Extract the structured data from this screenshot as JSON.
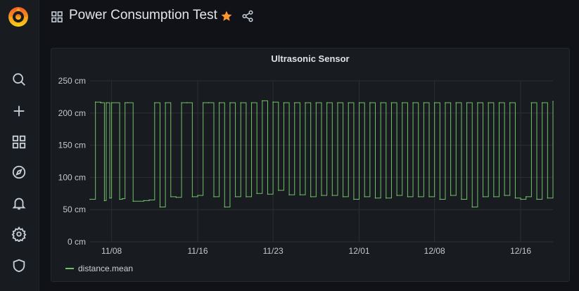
{
  "sidebar": {
    "items": [
      {
        "name": "search-icon"
      },
      {
        "name": "plus-icon"
      },
      {
        "name": "dashboards-icon"
      },
      {
        "name": "explore-compass-icon"
      },
      {
        "name": "alerting-bell-icon"
      },
      {
        "name": "configuration-gear-icon"
      },
      {
        "name": "admin-shield-icon"
      }
    ]
  },
  "header": {
    "title": "Power Consumption Test",
    "star_color": "#ff9830"
  },
  "panel": {
    "title": "Ultrasonic Sensor",
    "legend": "distance.mean"
  },
  "chart_data": {
    "type": "line",
    "title": "Ultrasonic Sensor",
    "y_unit": "cm",
    "ylim": [
      0,
      250
    ],
    "y_ticks": [
      "0 cm",
      "50 cm",
      "100 cm",
      "150 cm",
      "200 cm",
      "250 cm"
    ],
    "x_ticks": [
      "11/08",
      "11/16",
      "11/23",
      "12/01",
      "12/08",
      "12/16"
    ],
    "grid": true,
    "legend_placement": "bottom-left",
    "series": [
      {
        "name": "distance.mean",
        "color": "#73bf69",
        "x": [
          "11/06",
          "11/06 12:00",
          "11/07",
          "11/07 08:00",
          "11/07 12:00",
          "11/07 20:00",
          "11/08",
          "11/08 18:00",
          "11/09",
          "11/09 06:00",
          "11/09 12:00",
          "11/10",
          "11/11",
          "11/11 12:00",
          "11/12",
          "11/12 12:00",
          "11/13",
          "11/13 12:00",
          "11/14",
          "11/14 12:00",
          "11/15",
          "11/15 12:00",
          "11/16",
          "11/16 12:00",
          "11/17",
          "11/17 12:00",
          "11/18",
          "11/18 12:00",
          "11/19",
          "11/19 12:00",
          "11/20",
          "11/20 12:00",
          "11/21",
          "11/21 12:00",
          "11/22",
          "11/22 12:00",
          "11/23",
          "11/23 12:00",
          "11/24",
          "11/24 12:00",
          "11/25",
          "11/25 12:00",
          "11/26",
          "11/26 12:00",
          "11/27",
          "11/27 12:00",
          "11/28",
          "11/28 12:00",
          "11/29",
          "11/29 12:00",
          "11/30",
          "11/30 12:00",
          "12/01",
          "12/01 12:00",
          "12/02",
          "12/02 12:00",
          "12/03",
          "12/03 12:00",
          "12/04",
          "12/04 12:00",
          "12/05",
          "12/05 12:00",
          "12/06",
          "12/06 12:00",
          "12/07",
          "12/07 12:00",
          "12/08",
          "12/08 12:00",
          "12/09",
          "12/09 12:00",
          "12/10",
          "12/10 12:00",
          "12/11",
          "12/11 12:00",
          "12/12",
          "12/12 12:00",
          "12/13",
          "12/13 12:00",
          "12/14",
          "12/14 12:00",
          "12/15",
          "12/15 12:00",
          "12/16",
          "12/16 12:00",
          "12/17",
          "12/17 12:00",
          "12/18",
          "12/18 12:00",
          "12/19"
        ],
        "values": [
          66,
          217,
          216,
          64,
          216,
          68,
          216,
          66,
          67,
          216,
          216,
          63,
          64,
          65,
          216,
          54,
          216,
          70,
          69,
          216,
          216,
          70,
          72,
          216,
          216,
          70,
          216,
          54,
          216,
          70,
          216,
          70,
          216,
          75,
          219,
          74,
          217,
          80,
          216,
          73,
          216,
          73,
          216,
          70,
          216,
          72,
          216,
          72,
          216,
          70,
          216,
          66,
          216,
          70,
          216,
          68,
          216,
          68,
          216,
          72,
          216,
          70,
          216,
          70,
          216,
          70,
          216,
          66,
          216,
          72,
          216,
          66,
          216,
          54,
          216,
          70,
          216,
          70,
          216,
          72,
          216,
          68,
          66,
          70,
          216,
          66,
          216,
          68,
          218
        ]
      }
    ]
  }
}
